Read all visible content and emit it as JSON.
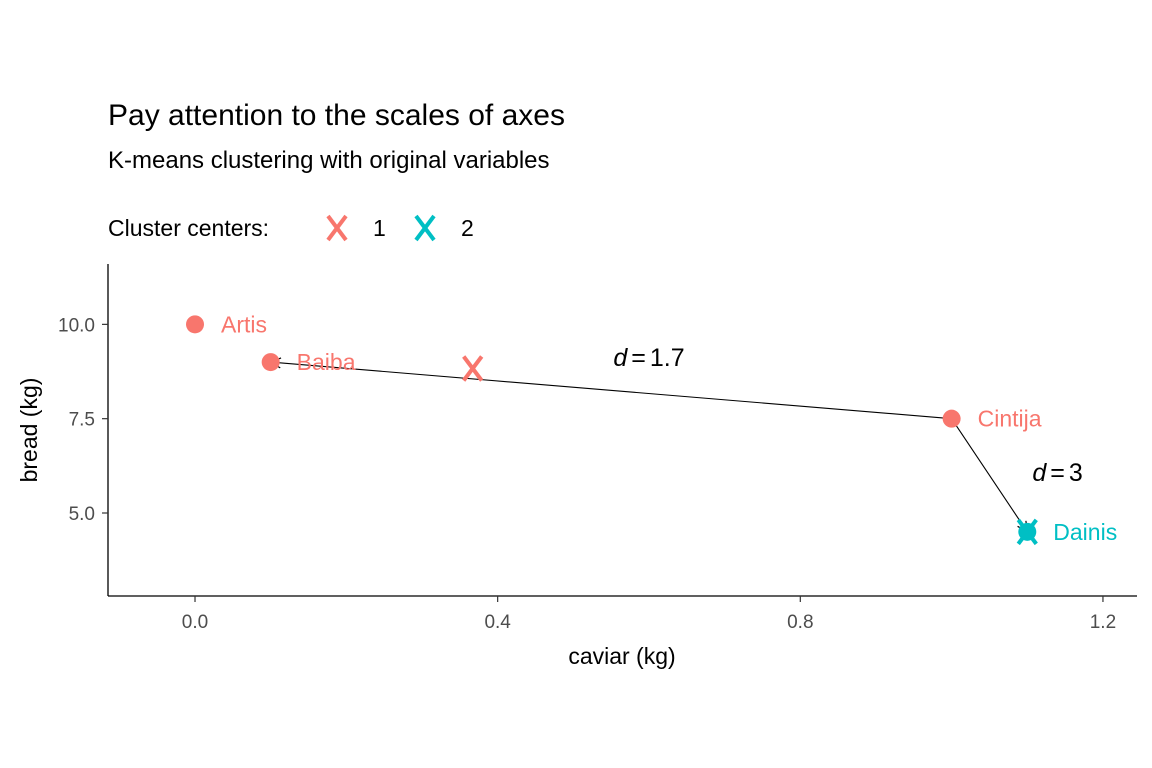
{
  "chart_data": {
    "type": "scatter",
    "title": "Pay attention to the scales of axes",
    "subtitle": "K-means clustering with original variables",
    "xlabel": "caviar (kg)",
    "ylabel": "bread (kg)",
    "xlim": [
      -0.115,
      1.245
    ],
    "ylim": [
      2.8,
      11.6
    ],
    "x_ticks": [
      0.0,
      0.4,
      0.8,
      1.2
    ],
    "x_tick_labels": [
      "0.0",
      "0.4",
      "0.8",
      "1.2"
    ],
    "y_ticks": [
      5.0,
      7.5,
      10.0
    ],
    "y_tick_labels": [
      "5.0",
      "7.5",
      "10.0"
    ],
    "grid": false,
    "legend": {
      "position": "top",
      "title": "Cluster centers:",
      "marker": "X",
      "entries": [
        {
          "label": "1",
          "color": "#F8766D"
        },
        {
          "label": "2",
          "color": "#00BFC4"
        }
      ]
    },
    "points": [
      {
        "name": "Artis",
        "x": 0.0,
        "y": 10.0,
        "cluster": 1
      },
      {
        "name": "Baiba",
        "x": 0.1,
        "y": 9.0,
        "cluster": 1
      },
      {
        "name": "Cintija",
        "x": 1.0,
        "y": 7.5,
        "cluster": 1
      },
      {
        "name": "Dainis",
        "x": 1.1,
        "y": 4.5,
        "cluster": 2
      }
    ],
    "centers": [
      {
        "cluster": 1,
        "x": 0.367,
        "y": 8.83
      },
      {
        "cluster": 2,
        "x": 1.1,
        "y": 4.5
      }
    ],
    "annotations": [
      {
        "type": "arrow",
        "from": [
          1.0,
          7.5
        ],
        "to": [
          0.1,
          9.0
        ]
      },
      {
        "type": "arrow",
        "from": [
          1.0,
          7.5
        ],
        "to": [
          1.1,
          4.5
        ]
      },
      {
        "type": "text",
        "var": "d",
        "op": "=",
        "value": "1.7",
        "x": 0.6,
        "y": 8.9
      },
      {
        "type": "text",
        "var": "d",
        "op": "=",
        "value": "3",
        "x": 1.14,
        "y": 5.85
      }
    ],
    "colors": {
      "cluster1": "#F8766D",
      "cluster2": "#00BFC4"
    }
  }
}
